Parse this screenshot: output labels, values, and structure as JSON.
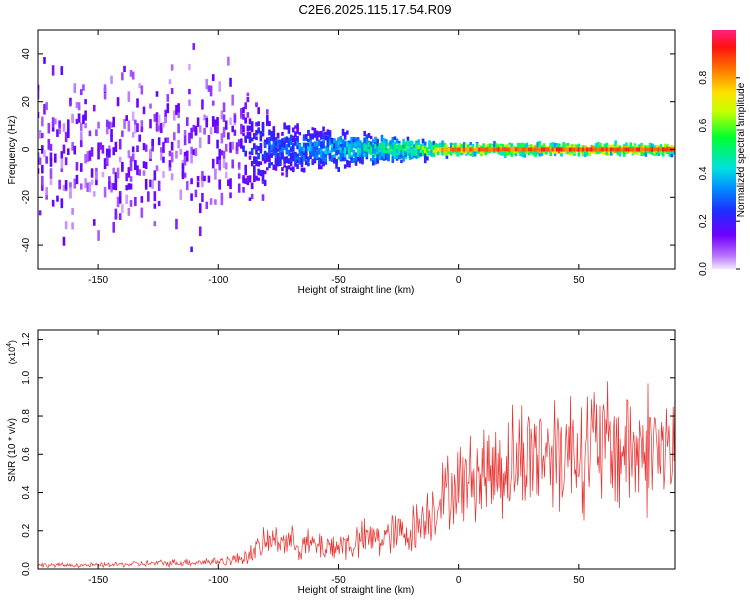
{
  "title": "C2E6.2025.115.17.54.R09",
  "colors": {
    "snr_line": "#e8322f",
    "axes": "#000000"
  },
  "chart_data": [
    {
      "type": "heatmap",
      "xlabel": "Height of straight line (km)",
      "ylabel": "Frequency (Hz)",
      "xlim": [
        -175,
        90
      ],
      "ylim": [
        -50,
        50
      ],
      "xticks": [
        -150,
        -100,
        -50,
        0,
        50
      ],
      "yticks": [
        -40,
        -20,
        0,
        20,
        40
      ],
      "colorbar": {
        "label": "Normalized spectral amplitude",
        "range": [
          0.0,
          1.0
        ],
        "ticks": [
          "0.0",
          "0.2",
          "0.4",
          "0.6",
          "0.8"
        ],
        "colormap": "rainbow (violet → blue → cyan → green → yellow → red → magenta)"
      },
      "description_points": [
        {
          "x": -150,
          "spread_hz": 50,
          "peak_amplitude": 0.15
        },
        {
          "x": -100,
          "spread_hz": 50,
          "peak_amplitude": 0.2
        },
        {
          "x": -75,
          "spread_hz": 15,
          "peak_amplitude": 0.35
        },
        {
          "x": -50,
          "spread_hz": 10,
          "peak_amplitude": 0.5
        },
        {
          "x": -25,
          "spread_hz": 6,
          "peak_amplitude": 0.65
        },
        {
          "x": 0,
          "spread_hz": 3,
          "peak_amplitude": 0.9
        },
        {
          "x": 50,
          "spread_hz": 3,
          "peak_amplitude": 0.95
        },
        {
          "x": 88,
          "spread_hz": 3,
          "peak_amplitude": 0.95
        }
      ]
    },
    {
      "type": "line",
      "xlabel": "Height of straight line (km)",
      "ylabel": "SNR (10 * v/v)",
      "scale_label": "(x10",
      "scale_exp": "4",
      "scale_close": ")",
      "xlim": [
        -175,
        90
      ],
      "ylim": [
        0.0,
        1.25
      ],
      "xticks": [
        -150,
        -100,
        -50,
        0,
        50
      ],
      "yticks": [
        "0.0",
        "0.2",
        "0.4",
        "0.6",
        "0.8",
        "1.0",
        "1.2"
      ],
      "series": [
        {
          "x": [
            -175,
            -150,
            -125,
            -100,
            -92,
            -85,
            -80,
            -75,
            -70,
            -65,
            -60,
            -55,
            -50,
            -45,
            -40,
            -35,
            -30,
            -25,
            -20,
            -15,
            -10,
            -5,
            0,
            5,
            10,
            15,
            20,
            25,
            30,
            35,
            40,
            45,
            50,
            55,
            60,
            65,
            70,
            75,
            80,
            85,
            90
          ],
          "values": [
            0.02,
            0.02,
            0.03,
            0.04,
            0.05,
            0.09,
            0.14,
            0.16,
            0.14,
            0.13,
            0.12,
            0.12,
            0.12,
            0.13,
            0.15,
            0.16,
            0.17,
            0.18,
            0.2,
            0.26,
            0.33,
            0.4,
            0.44,
            0.47,
            0.51,
            0.52,
            0.55,
            0.57,
            0.6,
            0.62,
            0.62,
            0.63,
            0.64,
            0.64,
            0.64,
            0.63,
            0.63,
            0.62,
            0.64,
            0.62,
            0.6
          ],
          "noise_amplitude": [
            0.01,
            0.01,
            0.015,
            0.02,
            0.03,
            0.05,
            0.07,
            0.07,
            0.07,
            0.07,
            0.07,
            0.07,
            0.07,
            0.08,
            0.09,
            0.09,
            0.1,
            0.1,
            0.11,
            0.12,
            0.15,
            0.17,
            0.18,
            0.2,
            0.22,
            0.24,
            0.25,
            0.27,
            0.27,
            0.27,
            0.28,
            0.29,
            0.3,
            0.3,
            0.3,
            0.3,
            0.3,
            0.3,
            0.3,
            0.3,
            0.3
          ]
        }
      ]
    }
  ]
}
